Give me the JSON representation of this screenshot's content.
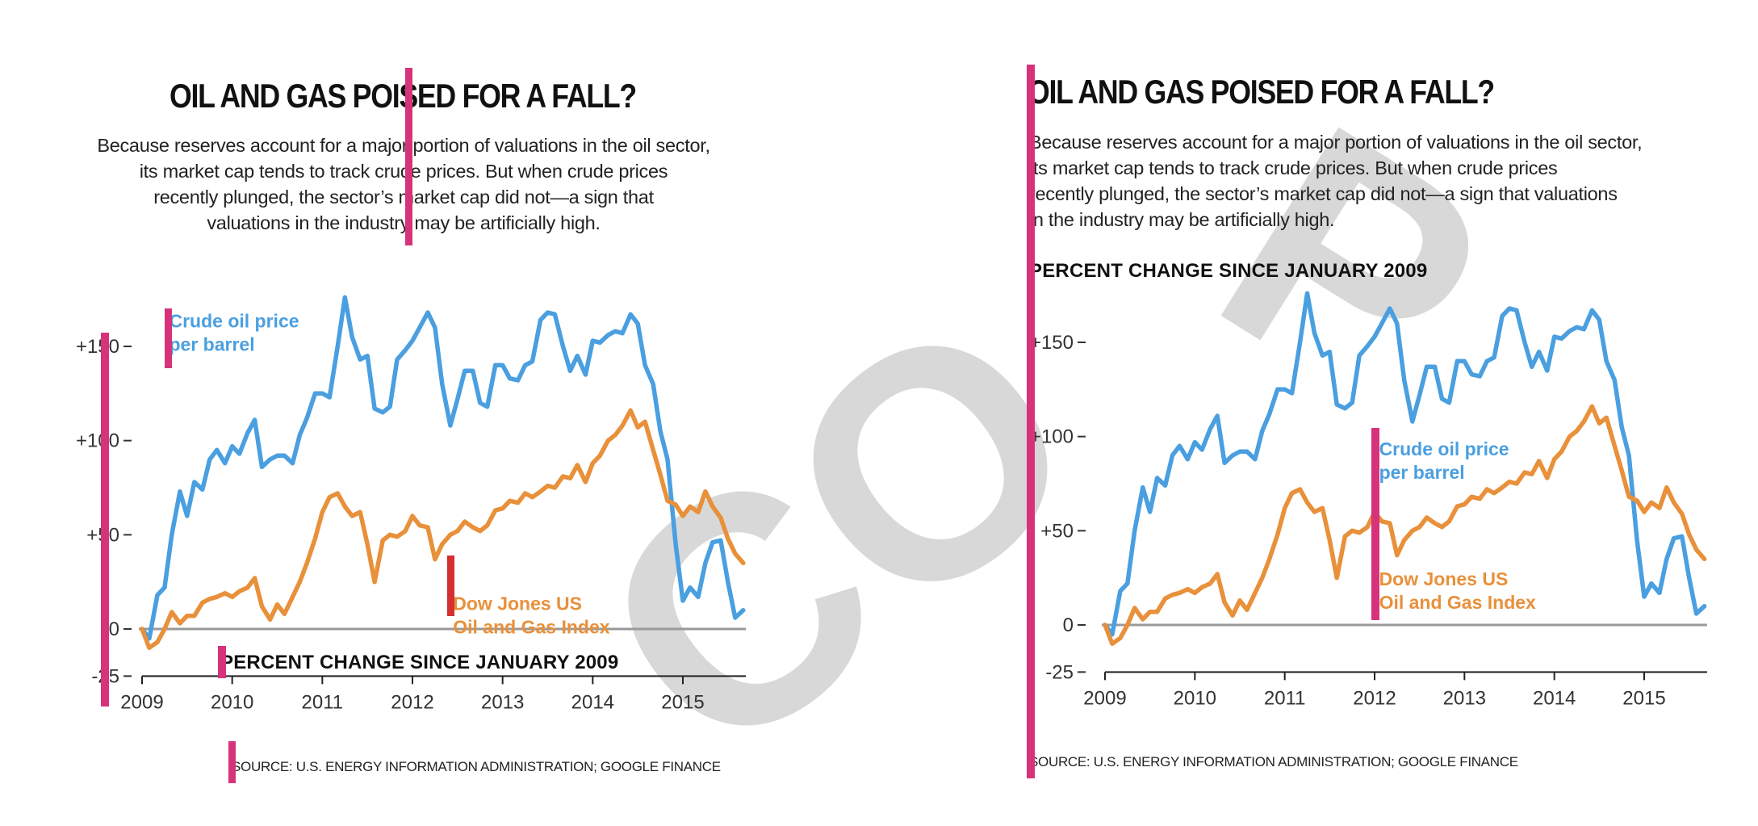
{
  "colors": {
    "crude": "#4a9fe0",
    "dowjones": "#e8903a",
    "marker": "#d6337a",
    "marker_red": "#d62f2f",
    "axis": "#999999",
    "watermark": "#d8d8d8"
  },
  "left_panel": {
    "title": "OIL AND GAS POISED FOR A FALL?",
    "description_lines": [
      "Because reserves account for a major portion of valuations in the oil sector,",
      "its market cap tends to track crude prices. But when crude prices",
      "recently plunged, the sector’s market cap did not—a sign that",
      "valuations in the industry may be artificially high."
    ],
    "axis_caption": "PERCENT CHANGE SINCE JANUARY 2009",
    "source": "SOURCE: U.S. ENERGY INFORMATION ADMINISTRATION; GOOGLE FINANCE",
    "watermark": "CO"
  },
  "right_panel": {
    "title": "OIL AND GAS POISED FOR A FALL?",
    "description_lines": [
      "Because reserves account for a major portion of valuations in the oil sector,",
      "its market cap tends to track crude prices. But when crude prices",
      "recently plunged, the sector’s market cap did not—a sign that valuations",
      "in the industry may be artificially high."
    ],
    "axis_caption": "PERCENT CHANGE SINCE JANUARY 2009",
    "source": "SOURCE: U.S. ENERGY INFORMATION ADMINISTRATION; GOOGLE FINANCE",
    "watermark": "P"
  },
  "chart_data": [
    {
      "type": "line",
      "panel": "left",
      "title": "OIL AND GAS POISED FOR A FALL?",
      "ylabel": "PERCENT CHANGE SINCE JANUARY 2009",
      "xlabel": "",
      "xlim": [
        2009,
        2015.7
      ],
      "ylim": [
        -25,
        175
      ],
      "x_ticks": [
        "2009",
        "2010",
        "2011",
        "2012",
        "2013",
        "2014",
        "2015"
      ],
      "y_ticks": [
        {
          "value": 150,
          "label": "+150"
        },
        {
          "value": 100,
          "label": "+100"
        },
        {
          "value": 50,
          "label": "+50"
        },
        {
          "value": 0,
          "label": "0"
        },
        {
          "value": -25,
          "label": "-25"
        }
      ],
      "grid": false,
      "series": [
        {
          "name": "Crude oil price per barrel",
          "color": "#4a9fe0",
          "legend_line1": "Crude oil price",
          "legend_line2": "per barrel",
          "legend_at": {
            "x": 2009.3,
            "y": 160
          },
          "x": [
            2009.0,
            2009.08,
            2009.17,
            2009.25,
            2009.33,
            2009.42,
            2009.5,
            2009.58,
            2009.67,
            2009.75,
            2009.83,
            2009.92,
            2010.0,
            2010.08,
            2010.17,
            2010.25,
            2010.33,
            2010.42,
            2010.5,
            2010.58,
            2010.67,
            2010.75,
            2010.83,
            2010.92,
            2011.0,
            2011.08,
            2011.17,
            2011.25,
            2011.33,
            2011.42,
            2011.5,
            2011.58,
            2011.67,
            2011.75,
            2011.83,
            2011.92,
            2012.0,
            2012.08,
            2012.17,
            2012.25,
            2012.33,
            2012.42,
            2012.5,
            2012.58,
            2012.67,
            2012.75,
            2012.83,
            2012.92,
            2013.0,
            2013.08,
            2013.17,
            2013.25,
            2013.33,
            2013.42,
            2013.5,
            2013.58,
            2013.67,
            2013.75,
            2013.83,
            2013.92,
            2014.0,
            2014.08,
            2014.17,
            2014.25,
            2014.33,
            2014.42,
            2014.5,
            2014.58,
            2014.67,
            2014.75,
            2014.83,
            2014.92,
            2015.0,
            2015.08,
            2015.17,
            2015.25,
            2015.33,
            2015.42,
            2015.5,
            2015.58,
            2015.67
          ],
          "values": [
            0,
            -5,
            18,
            22,
            50,
            73,
            60,
            78,
            74,
            90,
            95,
            88,
            97,
            93,
            104,
            111,
            86,
            90,
            92,
            92,
            88,
            103,
            112,
            125,
            125,
            123,
            150,
            176,
            155,
            143,
            145,
            117,
            115,
            118,
            143,
            148,
            153,
            160,
            168,
            160,
            130,
            108,
            122,
            137,
            137,
            120,
            118,
            140,
            140,
            133,
            132,
            140,
            142,
            164,
            168,
            167,
            150,
            137,
            145,
            135,
            153,
            152,
            156,
            158,
            157,
            167,
            162,
            140,
            130,
            105,
            90,
            45,
            15,
            22,
            17,
            35,
            46,
            47,
            25,
            6,
            10
          ]
        },
        {
          "name": "Dow Jones US Oil and Gas Index",
          "color": "#e8903a",
          "legend_line1": "Dow Jones US",
          "legend_line2": "Oil and Gas Index",
          "legend_at": {
            "x": 2012.45,
            "y": 10
          },
          "x": [
            2009.0,
            2009.08,
            2009.17,
            2009.25,
            2009.33,
            2009.42,
            2009.5,
            2009.58,
            2009.67,
            2009.75,
            2009.83,
            2009.92,
            2010.0,
            2010.08,
            2010.17,
            2010.25,
            2010.33,
            2010.42,
            2010.5,
            2010.58,
            2010.67,
            2010.75,
            2010.83,
            2010.92,
            2011.0,
            2011.08,
            2011.17,
            2011.25,
            2011.33,
            2011.42,
            2011.5,
            2011.58,
            2011.67,
            2011.75,
            2011.83,
            2011.92,
            2012.0,
            2012.08,
            2012.17,
            2012.25,
            2012.33,
            2012.42,
            2012.5,
            2012.58,
            2012.67,
            2012.75,
            2012.83,
            2012.92,
            2013.0,
            2013.08,
            2013.17,
            2013.25,
            2013.33,
            2013.42,
            2013.5,
            2013.58,
            2013.67,
            2013.75,
            2013.83,
            2013.92,
            2014.0,
            2014.08,
            2014.17,
            2014.25,
            2014.33,
            2014.42,
            2014.5,
            2014.58,
            2014.67,
            2014.75,
            2014.83,
            2014.92,
            2015.0,
            2015.08,
            2015.17,
            2015.25,
            2015.33,
            2015.42,
            2015.5,
            2015.58,
            2015.67
          ],
          "values": [
            0,
            -10,
            -7,
            0,
            9,
            3,
            7,
            7,
            14,
            16,
            17,
            19,
            17,
            20,
            22,
            27,
            12,
            5,
            13,
            8,
            17,
            25,
            35,
            48,
            62,
            70,
            72,
            65,
            60,
            62,
            45,
            25,
            47,
            50,
            49,
            52,
            60,
            55,
            54,
            37,
            45,
            50,
            52,
            57,
            54,
            52,
            55,
            63,
            64,
            68,
            67,
            72,
            70,
            73,
            76,
            75,
            81,
            80,
            87,
            78,
            88,
            92,
            100,
            103,
            108,
            116,
            107,
            110,
            95,
            82,
            68,
            66,
            60,
            65,
            62,
            73,
            65,
            59,
            48,
            40,
            35
          ]
        }
      ]
    },
    {
      "type": "line",
      "panel": "right",
      "title": "OIL AND GAS POISED FOR A FALL?",
      "ylabel": "PERCENT CHANGE SINCE JANUARY 2009",
      "xlabel": "",
      "xlim": [
        2009,
        2015.7
      ],
      "ylim": [
        -25,
        175
      ],
      "x_ticks": [
        "2009",
        "2010",
        "2011",
        "2012",
        "2013",
        "2014",
        "2015"
      ],
      "y_ticks": [
        {
          "value": 150,
          "label": "+150"
        },
        {
          "value": 100,
          "label": "+100"
        },
        {
          "value": 50,
          "label": "+50"
        },
        {
          "value": 0,
          "label": "0"
        },
        {
          "value": -25,
          "label": "-25"
        }
      ],
      "grid": false,
      "series": [
        {
          "name": "Crude oil price per barrel",
          "color": "#4a9fe0",
          "legend_line1": "Crude oil price",
          "legend_line2": "per barrel",
          "legend_at": {
            "x": 2012.05,
            "y": 90
          },
          "x": [
            2009.0,
            2009.08,
            2009.17,
            2009.25,
            2009.33,
            2009.42,
            2009.5,
            2009.58,
            2009.67,
            2009.75,
            2009.83,
            2009.92,
            2010.0,
            2010.08,
            2010.17,
            2010.25,
            2010.33,
            2010.42,
            2010.5,
            2010.58,
            2010.67,
            2010.75,
            2010.83,
            2010.92,
            2011.0,
            2011.08,
            2011.17,
            2011.25,
            2011.33,
            2011.42,
            2011.5,
            2011.58,
            2011.67,
            2011.75,
            2011.83,
            2011.92,
            2012.0,
            2012.08,
            2012.17,
            2012.25,
            2012.33,
            2012.42,
            2012.5,
            2012.58,
            2012.67,
            2012.75,
            2012.83,
            2012.92,
            2013.0,
            2013.08,
            2013.17,
            2013.25,
            2013.33,
            2013.42,
            2013.5,
            2013.58,
            2013.67,
            2013.75,
            2013.83,
            2013.92,
            2014.0,
            2014.08,
            2014.17,
            2014.25,
            2014.33,
            2014.42,
            2014.5,
            2014.58,
            2014.67,
            2014.75,
            2014.83,
            2014.92,
            2015.0,
            2015.08,
            2015.17,
            2015.25,
            2015.33,
            2015.42,
            2015.5,
            2015.58,
            2015.67
          ],
          "values": [
            0,
            -5,
            18,
            22,
            50,
            73,
            60,
            78,
            74,
            90,
            95,
            88,
            97,
            93,
            104,
            111,
            86,
            90,
            92,
            92,
            88,
            103,
            112,
            125,
            125,
            123,
            150,
            176,
            155,
            143,
            145,
            117,
            115,
            118,
            143,
            148,
            153,
            160,
            168,
            160,
            130,
            108,
            122,
            137,
            137,
            120,
            118,
            140,
            140,
            133,
            132,
            140,
            142,
            164,
            168,
            167,
            150,
            137,
            145,
            135,
            153,
            152,
            156,
            158,
            157,
            167,
            162,
            140,
            130,
            105,
            90,
            45,
            15,
            22,
            17,
            35,
            46,
            47,
            25,
            6,
            10
          ]
        },
        {
          "name": "Dow Jones US Oil and Gas Index",
          "color": "#e8903a",
          "legend_line1": "Dow Jones US",
          "legend_line2": "Oil and Gas Index",
          "legend_at": {
            "x": 2012.05,
            "y": 21
          },
          "x": [
            2009.0,
            2009.08,
            2009.17,
            2009.25,
            2009.33,
            2009.42,
            2009.5,
            2009.58,
            2009.67,
            2009.75,
            2009.83,
            2009.92,
            2010.0,
            2010.08,
            2010.17,
            2010.25,
            2010.33,
            2010.42,
            2010.5,
            2010.58,
            2010.67,
            2010.75,
            2010.83,
            2010.92,
            2011.0,
            2011.08,
            2011.17,
            2011.25,
            2011.33,
            2011.42,
            2011.5,
            2011.58,
            2011.67,
            2011.75,
            2011.83,
            2011.92,
            2012.0,
            2012.08,
            2012.17,
            2012.25,
            2012.33,
            2012.42,
            2012.5,
            2012.58,
            2012.67,
            2012.75,
            2012.83,
            2012.92,
            2013.0,
            2013.08,
            2013.17,
            2013.25,
            2013.33,
            2013.42,
            2013.5,
            2013.58,
            2013.67,
            2013.75,
            2013.83,
            2013.92,
            2014.0,
            2014.08,
            2014.17,
            2014.25,
            2014.33,
            2014.42,
            2014.5,
            2014.58,
            2014.67,
            2014.75,
            2014.83,
            2014.92,
            2015.0,
            2015.08,
            2015.17,
            2015.25,
            2015.33,
            2015.42,
            2015.5,
            2015.58,
            2015.67
          ],
          "values": [
            0,
            -10,
            -7,
            0,
            9,
            3,
            7,
            7,
            14,
            16,
            17,
            19,
            17,
            20,
            22,
            27,
            12,
            5,
            13,
            8,
            17,
            25,
            35,
            48,
            62,
            70,
            72,
            65,
            60,
            62,
            45,
            25,
            47,
            50,
            49,
            52,
            60,
            55,
            54,
            37,
            45,
            50,
            52,
            57,
            54,
            52,
            55,
            63,
            64,
            68,
            67,
            72,
            70,
            73,
            76,
            75,
            81,
            80,
            87,
            78,
            88,
            92,
            100,
            103,
            108,
            116,
            107,
            110,
            95,
            82,
            68,
            66,
            60,
            65,
            62,
            73,
            65,
            59,
            48,
            40,
            35
          ]
        }
      ]
    }
  ]
}
